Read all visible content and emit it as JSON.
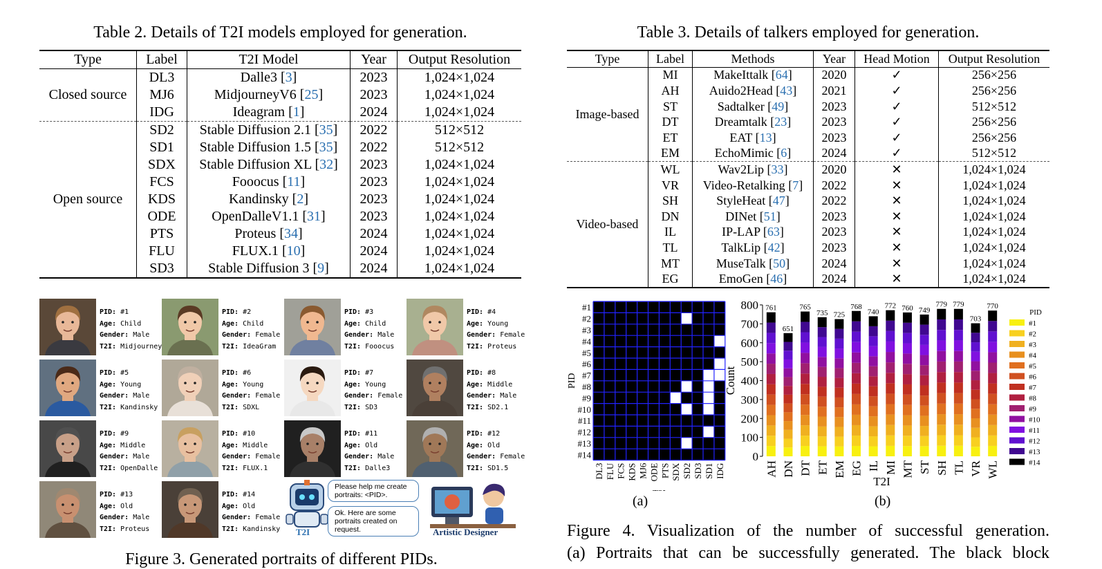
{
  "table2": {
    "caption": "Table 2. Details of T2I models employed for generation.",
    "headers": [
      "Type",
      "Label",
      "T2I Model",
      "Year",
      "Output Resolution"
    ],
    "groups": [
      {
        "type": "Closed source",
        "rows": [
          {
            "label": "DL3",
            "model": "Dalle3",
            "cite": "3",
            "year": "2023",
            "res": "1,024×1,024"
          },
          {
            "label": "MJ6",
            "model": "MidjourneyV6",
            "cite": "25",
            "year": "2023",
            "res": "1,024×1,024"
          },
          {
            "label": "IDG",
            "model": "Ideagram",
            "cite": "1",
            "year": "2024",
            "res": "1,024×1,024"
          }
        ]
      },
      {
        "type": "Open source",
        "rows": [
          {
            "label": "SD2",
            "model": "Stable Diffusion 2.1",
            "cite": "35",
            "year": "2022",
            "res": "512×512"
          },
          {
            "label": "SD1",
            "model": "Stable Diffusion 1.5",
            "cite": "35",
            "year": "2022",
            "res": "512×512"
          },
          {
            "label": "SDX",
            "model": "Stable Diffusion XL",
            "cite": "32",
            "year": "2023",
            "res": "1,024×1,024"
          },
          {
            "label": "FCS",
            "model": "Fooocus",
            "cite": "11",
            "year": "2023",
            "res": "1,024×1,024"
          },
          {
            "label": "KDS",
            "model": "Kandinsky",
            "cite": "2",
            "year": "2023",
            "res": "1,024×1,024"
          },
          {
            "label": "ODE",
            "model": "OpenDalleV1.1",
            "cite": "31",
            "year": "2023",
            "res": "1,024×1,024"
          },
          {
            "label": "PTS",
            "model": "Proteus",
            "cite": "34",
            "year": "2024",
            "res": "1,024×1,024"
          },
          {
            "label": "FLU",
            "model": "FLUX.1",
            "cite": "10",
            "year": "2024",
            "res": "1,024×1,024"
          },
          {
            "label": "SD3",
            "model": "Stable Diffusion 3",
            "cite": "9",
            "year": "2024",
            "res": "1,024×1,024"
          }
        ]
      }
    ]
  },
  "table3": {
    "caption": "Table 3. Details of talkers employed for generation.",
    "headers": [
      "Type",
      "Label",
      "Methods",
      "Year",
      "Head Motion",
      "Output Resolution"
    ],
    "groups": [
      {
        "type": "Image-based",
        "rows": [
          {
            "label": "MI",
            "method": "MakeIttalk",
            "cite": "64",
            "year": "2020",
            "motion": "✓",
            "res": "256×256"
          },
          {
            "label": "AH",
            "method": "Auido2Head",
            "cite": "43",
            "year": "2021",
            "motion": "✓",
            "res": "256×256"
          },
          {
            "label": "ST",
            "method": "Sadtalker",
            "cite": "49",
            "year": "2023",
            "motion": "✓",
            "res": "512×512"
          },
          {
            "label": "DT",
            "method": "Dreamtalk",
            "cite": "23",
            "year": "2023",
            "motion": "✓",
            "res": "256×256"
          },
          {
            "label": "ET",
            "method": "EAT",
            "cite": "13",
            "year": "2023",
            "motion": "✓",
            "res": "256×256"
          },
          {
            "label": "EM",
            "method": "EchoMimic",
            "cite": "6",
            "year": "2024",
            "motion": "✓",
            "res": "512×512"
          }
        ]
      },
      {
        "type": "Video-based",
        "rows": [
          {
            "label": "WL",
            "method": "Wav2Lip",
            "cite": "33",
            "year": "2020",
            "motion": "✕",
            "res": "1,024×1,024"
          },
          {
            "label": "VR",
            "method": "Video-Retalking",
            "cite": "7",
            "year": "2022",
            "motion": "✕",
            "res": "1,024×1,024"
          },
          {
            "label": "SH",
            "method": "StyleHeat",
            "cite": "47",
            "year": "2022",
            "motion": "✕",
            "res": "1,024×1,024"
          },
          {
            "label": "DN",
            "method": "DINet",
            "cite": "51",
            "year": "2023",
            "motion": "✕",
            "res": "1,024×1,024"
          },
          {
            "label": "IL",
            "method": "IP-LAP",
            "cite": "63",
            "year": "2023",
            "motion": "✕",
            "res": "1,024×1,024"
          },
          {
            "label": "TL",
            "method": "TalkLip",
            "cite": "42",
            "year": "2023",
            "motion": "✕",
            "res": "1,024×1,024"
          },
          {
            "label": "MT",
            "method": "MuseTalk",
            "cite": "50",
            "year": "2024",
            "motion": "✕",
            "res": "1,024×1,024"
          },
          {
            "label": "EG",
            "method": "EmoGen",
            "cite": "46",
            "year": "2024",
            "motion": "✕",
            "res": "1,024×1,024"
          }
        ]
      }
    ]
  },
  "portraits": [
    {
      "pid": "#1",
      "age": "Child",
      "gender": "Male",
      "t2i": "Midjourney",
      "skin": "#e8b898",
      "hair": "#a07040",
      "bg": "#5a4838",
      "cloth": "#3a3a40"
    },
    {
      "pid": "#2",
      "age": "Child",
      "gender": "Female",
      "t2i": "IdeaGram",
      "skin": "#f0c8a8",
      "hair": "#5a3a24",
      "bg": "#8a9a70",
      "cloth": "#6a7050"
    },
    {
      "pid": "#3",
      "age": "Child",
      "gender": "Male",
      "t2i": "Fooocus",
      "skin": "#f0b890",
      "hair": "#8a5a30",
      "bg": "#a0a098",
      "cloth": "#7080a0"
    },
    {
      "pid": "#4",
      "age": "Young",
      "gender": "Female",
      "t2i": "Proteus",
      "skin": "#f0c8a8",
      "hair": "#b08860",
      "bg": "#a8b090",
      "cloth": "#c09080"
    },
    {
      "pid": "#5",
      "age": "Young",
      "gender": "Male",
      "t2i": "Kandinsky",
      "skin": "#e0a880",
      "hair": "#4a2a18",
      "bg": "#607080",
      "cloth": "#2a5aa0"
    },
    {
      "pid": "#6",
      "age": "Young",
      "gender": "Female",
      "t2i": "SDXL",
      "skin": "#f0d0b8",
      "hair": "#c0b0a0",
      "bg": "#b0a898",
      "cloth": "#e8e0d8"
    },
    {
      "pid": "#7",
      "age": "Young",
      "gender": "Female",
      "t2i": "SD3",
      "skin": "#f5d8c0",
      "hair": "#2a1a10",
      "bg": "#f0f0f0",
      "cloth": "#e8e8e8"
    },
    {
      "pid": "#8",
      "age": "Middle",
      "gender": "Male",
      "t2i": "SD2.1",
      "skin": "#b08060",
      "hair": "#707070",
      "bg": "#504840",
      "cloth": "#4a4038"
    },
    {
      "pid": "#9",
      "age": "Middle",
      "gender": "Male",
      "t2i": "OpenDalle",
      "skin": "#c8a088",
      "hair": "#505050",
      "bg": "#484848",
      "cloth": "#202020"
    },
    {
      "pid": "#10",
      "age": "Middle",
      "gender": "Female",
      "t2i": "FLUX.1",
      "skin": "#e8c0a0",
      "hair": "#c8a060",
      "bg": "#b8b0a0",
      "cloth": "#90a0a8"
    },
    {
      "pid": "#11",
      "age": "Old",
      "gender": "Male",
      "t2i": "Dalle3",
      "skin": "#a88068",
      "hair": "#c8c8c8",
      "bg": "#202020",
      "cloth": "#303030"
    },
    {
      "pid": "#12",
      "age": "Old",
      "gender": "Female",
      "t2i": "SD1.5",
      "skin": "#a07858",
      "hair": "#b0b0b0",
      "bg": "#706858",
      "cloth": "#506070"
    },
    {
      "pid": "#13",
      "age": "Old",
      "gender": "Male",
      "t2i": "Proteus",
      "skin": "#c89070",
      "hair": "#a08870",
      "bg": "#908878",
      "cloth": "#605040"
    },
    {
      "pid": "#14",
      "age": "Old",
      "gender": "Female",
      "t2i": "Kandinsky",
      "skin": "#c89878",
      "hair": "#706050",
      "bg": "#4a4038",
      "cloth": "#503828"
    }
  ],
  "info_labels": {
    "pid": "PID:",
    "age": "Age:",
    "gender": "Gender:",
    "t2i": "T2I:"
  },
  "scene": {
    "bubble1": "Please help me create portraits: <PID>.",
    "bubble2": "Ok. Here are some portraits created on request.",
    "robot_label": "T2I",
    "designer_label": "Artistic Designer"
  },
  "figure3_caption": "Figure 3. Generated portraits of different PIDs.",
  "chart_data": [
    {
      "type": "heatmap",
      "sublabel": "(a)",
      "xlabel": "T2I",
      "ylabel": "PID",
      "x": [
        "DL3",
        "FLU",
        "FCS",
        "KDS",
        "MJ6",
        "ODE",
        "PTS",
        "SDX",
        "SD2",
        "SD3",
        "SD1",
        "IDG"
      ],
      "y": [
        "#1",
        "#2",
        "#3",
        "#4",
        "#5",
        "#6",
        "#7",
        "#8",
        "#9",
        "#10",
        "#11",
        "#12",
        "#13",
        "#14"
      ],
      "white_cells": [
        [
          1,
          "SD2"
        ],
        [
          3,
          "IDG"
        ],
        [
          5,
          "IDG"
        ],
        [
          6,
          "SD1"
        ],
        [
          6,
          "IDG"
        ],
        [
          7,
          "SD2"
        ],
        [
          7,
          "SD1"
        ],
        [
          8,
          "SDX"
        ],
        [
          8,
          "SD1"
        ],
        [
          9,
          "SD2"
        ],
        [
          9,
          "SD1"
        ],
        [
          11,
          "SD1"
        ],
        [
          12,
          "SD2"
        ]
      ],
      "colors": {
        "block": "#000000",
        "grid": "#2222ff",
        "success": "#ffffff"
      }
    },
    {
      "type": "bar",
      "stacked": true,
      "sublabel": "(b)",
      "xlabel": "T2I",
      "ylabel": "Count",
      "categories": [
        "AH",
        "DN",
        "DT",
        "ET",
        "EM",
        "EG",
        "IL",
        "MI",
        "MT",
        "ST",
        "SH",
        "TL",
        "VR",
        "WL"
      ],
      "totals": [
        761,
        651,
        765,
        735,
        725,
        768,
        740,
        772,
        760,
        749,
        779,
        779,
        703,
        770
      ],
      "ylim": [
        0,
        800
      ],
      "yticks": [
        0,
        100,
        200,
        300,
        400,
        500,
        600,
        700,
        800
      ],
      "legend_title": "PID",
      "legend": [
        "#1",
        "#2",
        "#3",
        "#4",
        "#5",
        "#6",
        "#7",
        "#8",
        "#9",
        "#10",
        "#11",
        "#12",
        "#13",
        "#14"
      ],
      "colors": [
        "#f8f010",
        "#f8d020",
        "#f0b020",
        "#e89020",
        "#e07020",
        "#d05020",
        "#c03020",
        "#b02040",
        "#a02070",
        "#9010a0",
        "#8010e0",
        "#6010d0",
        "#400890",
        "#000000"
      ]
    }
  ],
  "figure4_caption_line1": "Figure 4.  Visualization of the number of successful generation.",
  "figure4_caption_line2": "(a) Portraits that can be successfully generated. The black block"
}
